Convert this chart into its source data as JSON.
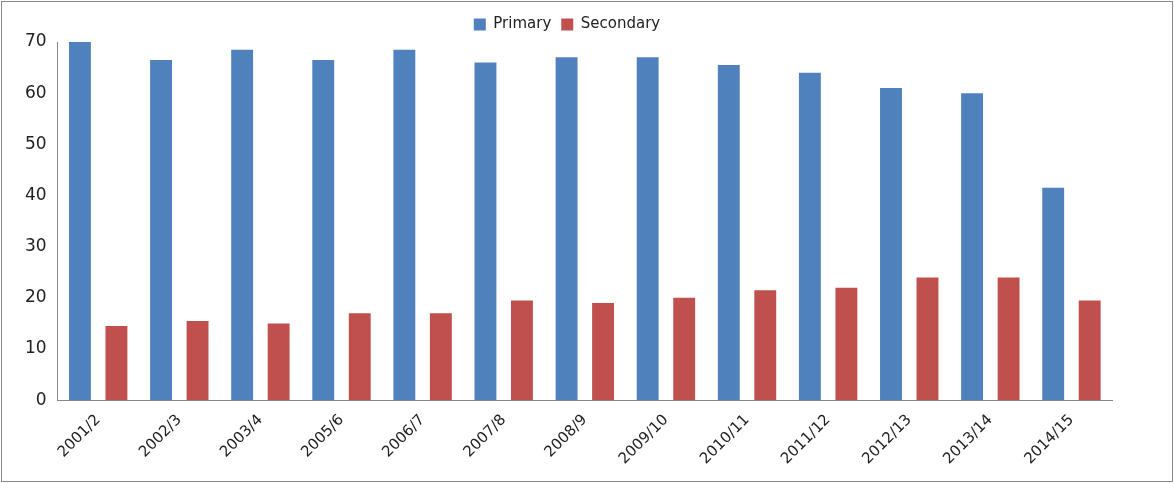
{
  "chart_data": {
    "type": "bar",
    "categories": [
      "2001/2",
      "2002/3",
      "2003/4",
      "2005/6",
      "2006/7",
      "2007/8",
      "2008/9",
      "2009/10",
      "2010/11",
      "2011/12",
      "2012/13",
      "2013/14",
      "2014/15"
    ],
    "series": [
      {
        "name": "Primary",
        "color": "#4f81bd",
        "values": [
          70,
          66.5,
          68.5,
          66.5,
          68.5,
          66,
          67,
          67,
          65.5,
          64,
          61,
          60,
          41.5
        ]
      },
      {
        "name": "Secondary",
        "color": "#c0504d",
        "values": [
          14.5,
          15.5,
          15,
          17,
          17,
          19.5,
          19,
          20,
          21.5,
          22,
          24,
          24,
          19.5
        ]
      }
    ],
    "ylim": [
      0,
      70
    ],
    "yticks": [
      0,
      10,
      20,
      30,
      40,
      50,
      60,
      70
    ],
    "grid": false,
    "legend": "top"
  }
}
